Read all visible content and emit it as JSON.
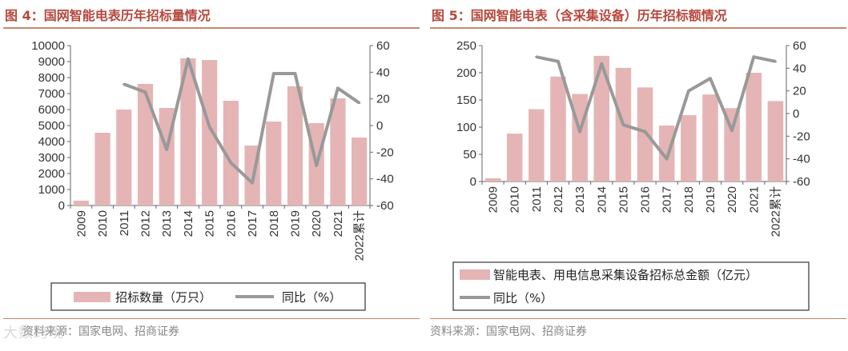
{
  "chart_data": [
    {
      "type": "bar",
      "title": "图 4：国网智能电表历年招标量情况",
      "categories": [
        "2009",
        "2010",
        "2011",
        "2012",
        "2013",
        "2014",
        "2015",
        "2016",
        "2017",
        "2018",
        "2019",
        "2020",
        "2021",
        "2022累计"
      ],
      "series": [
        {
          "name": "招标数量（万只）",
          "axis": "left",
          "type": "bar",
          "values": [
            300,
            4550,
            6000,
            7600,
            6100,
            9200,
            9100,
            6550,
            3750,
            5250,
            7450,
            5150,
            6700,
            4250
          ]
        },
        {
          "name": "同比（%）",
          "axis": "right",
          "type": "line",
          "values": [
            null,
            null,
            31,
            25,
            -18,
            50,
            -1,
            -28,
            -43,
            39,
            39,
            -30,
            28,
            17
          ]
        }
      ],
      "ylim": [
        0,
        10000
      ],
      "yticks": [
        0,
        1000,
        2000,
        3000,
        4000,
        5000,
        6000,
        7000,
        8000,
        9000,
        10000
      ],
      "y2lim": [
        -60,
        60
      ],
      "y2ticks": [
        -60,
        -40,
        -20,
        0,
        20,
        40,
        60
      ],
      "legend": [
        "招标数量（万只）",
        "同比（%）"
      ],
      "source": "资料来源：国家电网、招商证券"
    },
    {
      "type": "bar",
      "title": "图 5：国网智能电表（含采集设备）历年招标额情况",
      "categories": [
        "2009",
        "2010",
        "2011",
        "2012",
        "2013",
        "2014",
        "2015",
        "2016",
        "2017",
        "2018",
        "2019",
        "2020",
        "2021",
        "2022累计"
      ],
      "series": [
        {
          "name": "智能电表、用电信息采集设备招标总金额（亿元）",
          "axis": "left",
          "type": "bar",
          "values": [
            6,
            88,
            133,
            193,
            161,
            231,
            209,
            173,
            103,
            122,
            160,
            135,
            200,
            148
          ]
        },
        {
          "name": "同比（%）",
          "axis": "right",
          "type": "line",
          "values": [
            null,
            null,
            50,
            46,
            -16,
            44,
            -10,
            -16,
            -40,
            20,
            31,
            -15,
            50,
            46
          ]
        }
      ],
      "ylim": [
        0,
        250
      ],
      "yticks": [
        0,
        50,
        100,
        150,
        200,
        250
      ],
      "y2lim": [
        -60,
        60
      ],
      "y2ticks": [
        -60,
        -40,
        -20,
        0,
        20,
        40,
        60
      ],
      "legend": [
        "智能电表、用电信息采集设备招标总金额（亿元）",
        "同比（%）"
      ],
      "source": "资料来源：国家电网、招商证券"
    }
  ],
  "watermark": "大数跨境",
  "colors": {
    "bar": "#e5b5b5",
    "line": "#999999",
    "title": "#b5473d",
    "rule": "#c9866d"
  }
}
